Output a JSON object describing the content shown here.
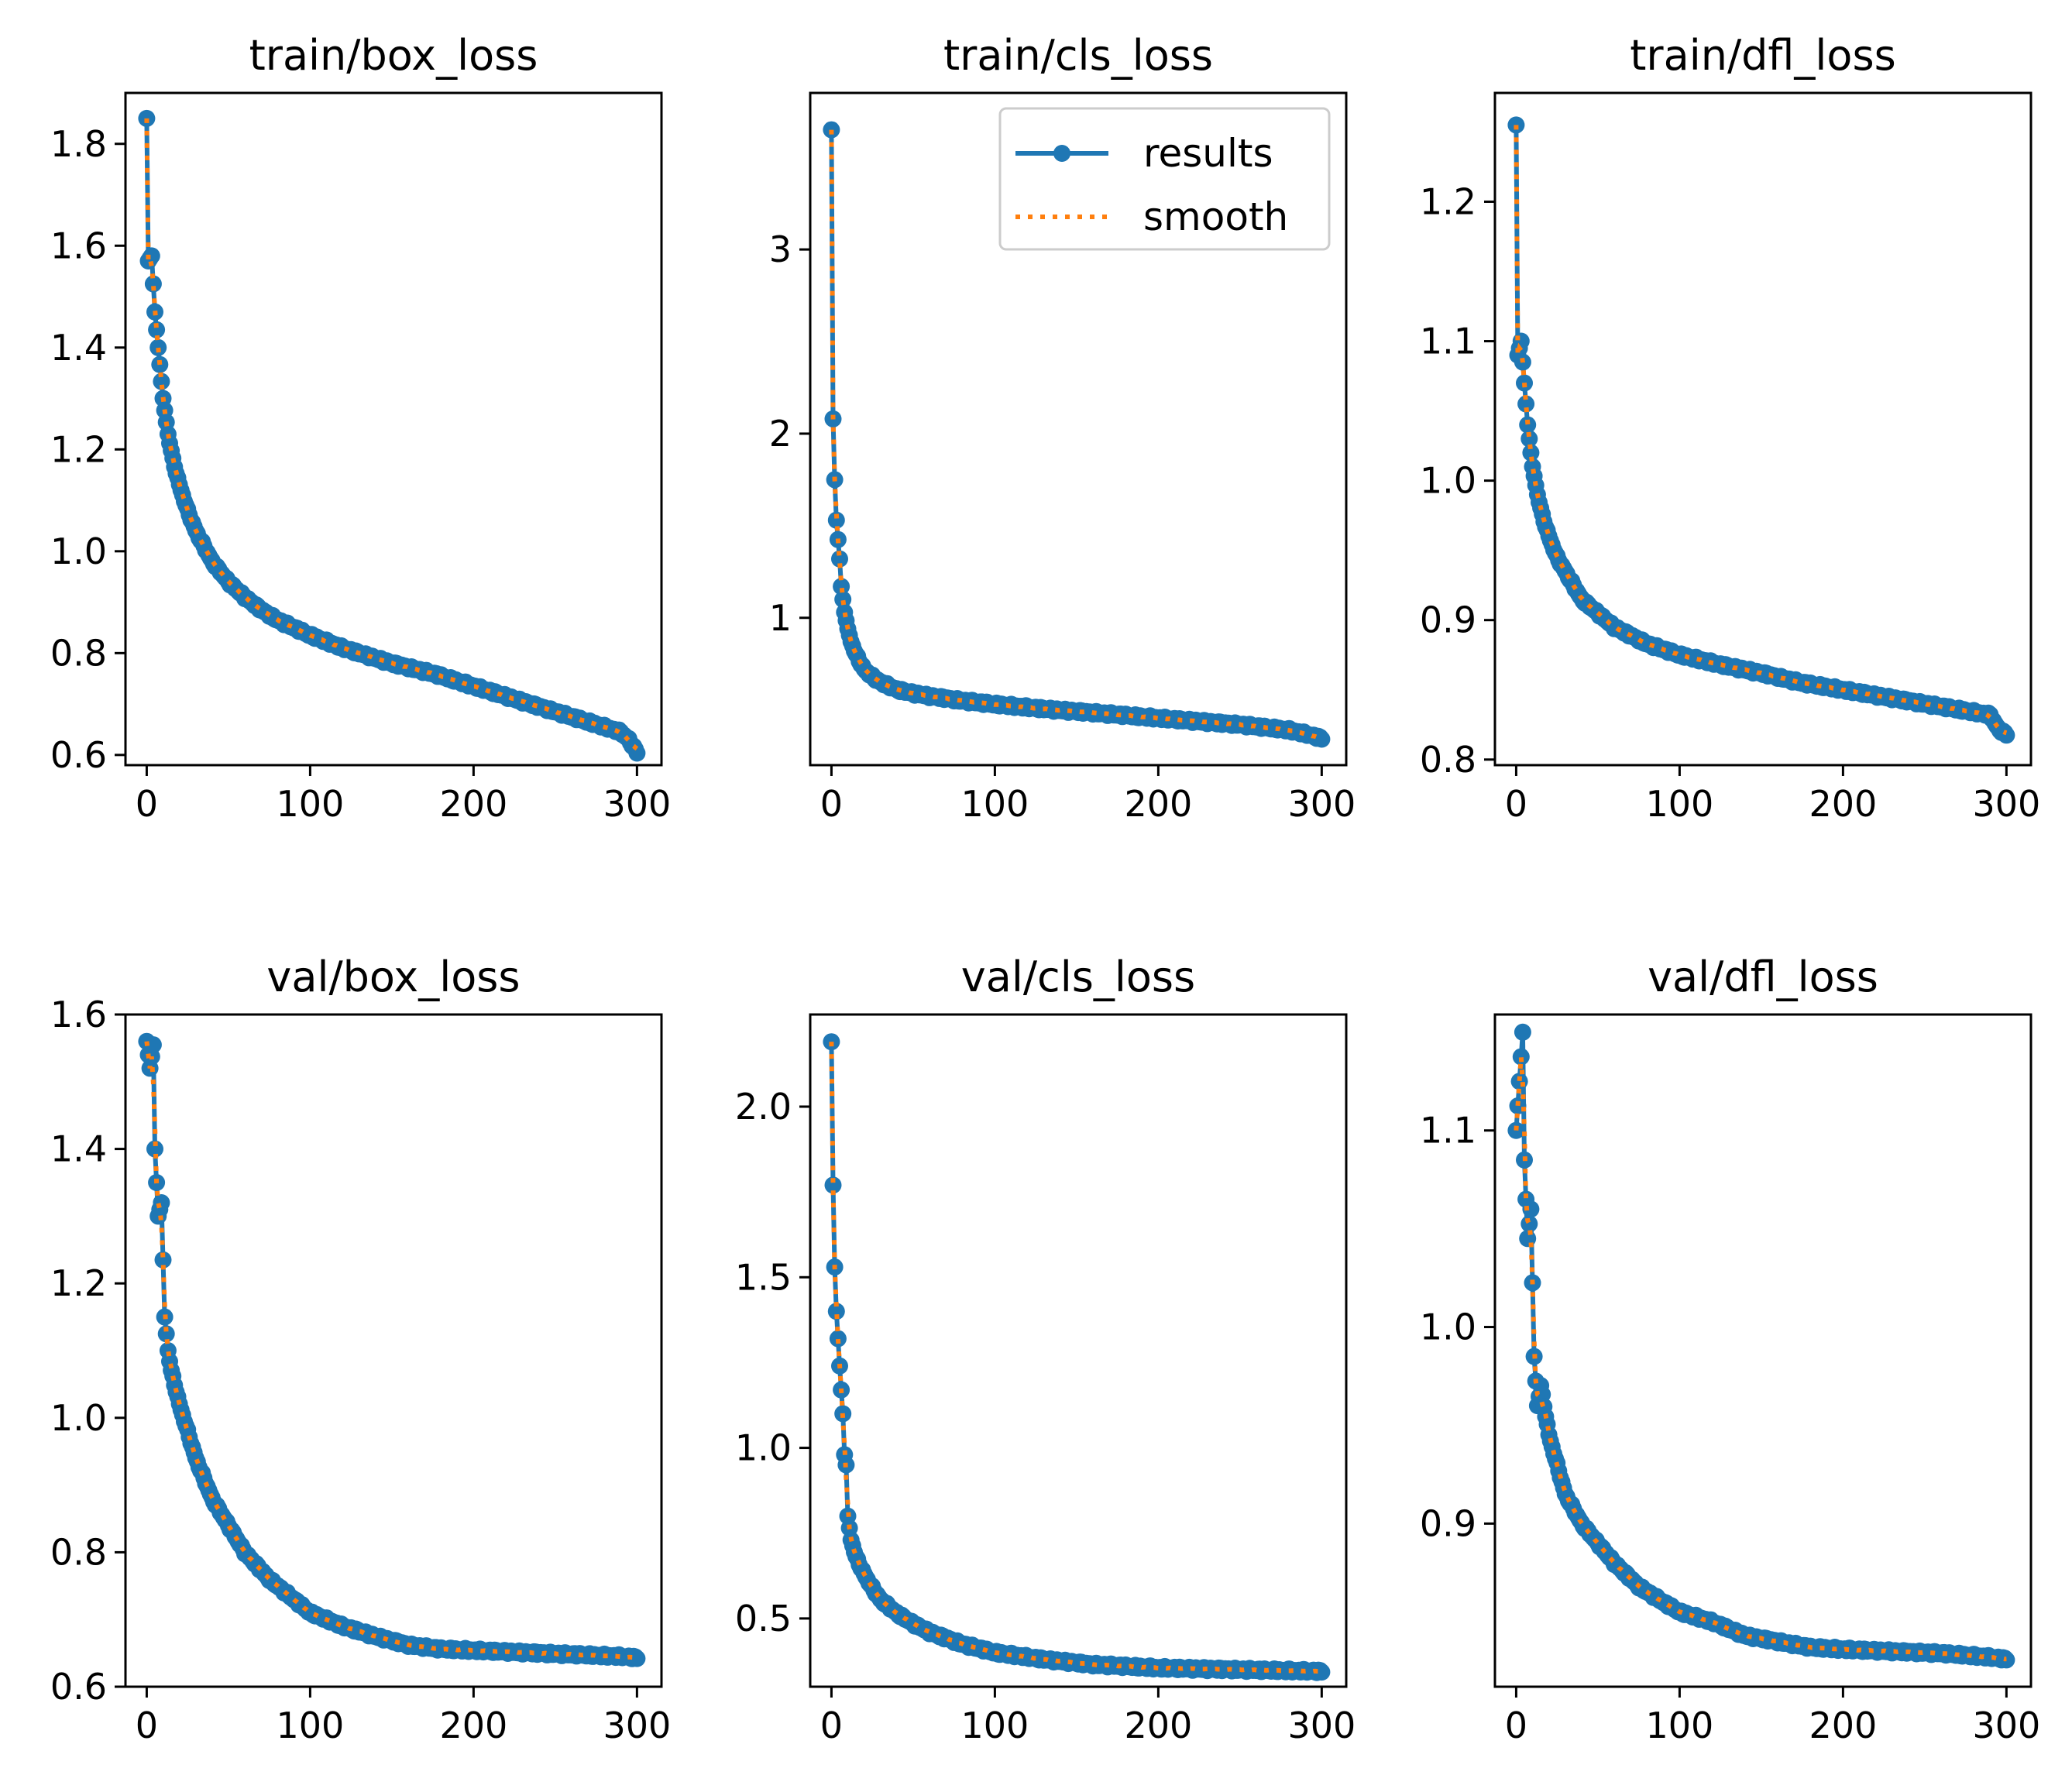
{
  "figure_title": "",
  "colors": {
    "results": "#1f77b4",
    "smooth": "#ff7f0e",
    "axes": "#000000",
    "background": "#ffffff",
    "legend_border": "#cccccc"
  },
  "legend": {
    "placement": "top-right of train/cls_loss",
    "entries": [
      {
        "name": "results",
        "style": "solid line with circle markers",
        "color": "#1f77b4"
      },
      {
        "name": "smooth",
        "style": "dotted line",
        "color": "#ff7f0e"
      }
    ]
  },
  "chart_data": [
    {
      "type": "line",
      "title": "train/box_loss",
      "xlabel": "",
      "ylabel": "",
      "xlim": [
        -13,
        315
      ],
      "ylim": [
        0.58,
        1.9
      ],
      "xticks": [
        0,
        100,
        200,
        300
      ],
      "yticks": [
        0.6,
        0.8,
        1.0,
        1.2,
        1.4,
        1.6,
        1.8
      ],
      "ytick_labels": [
        "0.6",
        "0.8",
        "1.0",
        "1.2",
        "1.4",
        "1.6",
        "1.8"
      ],
      "shape": "hyperbolic",
      "anchors": [
        [
          0,
          1.85
        ],
        [
          1,
          1.57
        ],
        [
          3,
          1.58
        ],
        [
          5,
          1.47
        ],
        [
          7,
          1.4
        ],
        [
          10,
          1.3
        ],
        [
          13,
          1.23
        ],
        [
          16,
          1.18
        ],
        [
          20,
          1.13
        ],
        [
          25,
          1.08
        ],
        [
          30,
          1.04
        ],
        [
          40,
          0.98
        ],
        [
          50,
          0.94
        ],
        [
          60,
          0.91
        ],
        [
          70,
          0.885
        ],
        [
          80,
          0.865
        ],
        [
          100,
          0.835
        ],
        [
          120,
          0.81
        ],
        [
          150,
          0.78
        ],
        [
          175,
          0.76
        ],
        [
          200,
          0.735
        ],
        [
          225,
          0.71
        ],
        [
          250,
          0.685
        ],
        [
          275,
          0.66
        ],
        [
          290,
          0.645
        ],
        [
          295,
          0.63
        ],
        [
          300,
          0.605
        ]
      ],
      "series": [
        {
          "name": "results",
          "role": "results"
        },
        {
          "name": "smooth",
          "role": "smooth"
        }
      ],
      "legend": false
    },
    {
      "type": "line",
      "title": "train/cls_loss",
      "xlabel": "",
      "ylabel": "",
      "xlim": [
        -13,
        315
      ],
      "ylim": [
        0.2,
        3.85
      ],
      "xticks": [
        0,
        100,
        200,
        300
      ],
      "yticks": [
        1,
        2,
        3
      ],
      "ytick_labels": [
        "1",
        "2",
        "3"
      ],
      "shape": "elbow",
      "anchors": [
        [
          0,
          3.65
        ],
        [
          1,
          2.08
        ],
        [
          2,
          1.75
        ],
        [
          3,
          1.53
        ],
        [
          5,
          1.32
        ],
        [
          6,
          1.17
        ],
        [
          8,
          1.03
        ],
        [
          10,
          0.94
        ],
        [
          12,
          0.87
        ],
        [
          15,
          0.8
        ],
        [
          20,
          0.72
        ],
        [
          25,
          0.68
        ],
        [
          30,
          0.65
        ],
        [
          40,
          0.61
        ],
        [
          50,
          0.59
        ],
        [
          60,
          0.575
        ],
        [
          80,
          0.55
        ],
        [
          100,
          0.53
        ],
        [
          130,
          0.505
        ],
        [
          160,
          0.485
        ],
        [
          200,
          0.455
        ],
        [
          250,
          0.42
        ],
        [
          280,
          0.39
        ],
        [
          290,
          0.37
        ],
        [
          300,
          0.345
        ]
      ],
      "series": [
        {
          "name": "results",
          "role": "results"
        },
        {
          "name": "smooth",
          "role": "smooth"
        }
      ],
      "legend": true
    },
    {
      "type": "line",
      "title": "train/dfl_loss",
      "xlabel": "",
      "ylabel": "",
      "xlim": [
        -13,
        315
      ],
      "ylim": [
        0.796,
        1.278
      ],
      "xticks": [
        0,
        100,
        200,
        300
      ],
      "yticks": [
        0.8,
        0.9,
        1.0,
        1.1,
        1.2
      ],
      "ytick_labels": [
        "0.8",
        "0.9",
        "1.0",
        "1.1",
        "1.2"
      ],
      "shape": "hyperbolic",
      "anchors": [
        [
          0,
          1.255
        ],
        [
          1,
          1.09
        ],
        [
          3,
          1.1
        ],
        [
          5,
          1.07
        ],
        [
          7,
          1.04
        ],
        [
          10,
          1.01
        ],
        [
          13,
          0.99
        ],
        [
          16,
          0.975
        ],
        [
          20,
          0.96
        ],
        [
          25,
          0.945
        ],
        [
          30,
          0.935
        ],
        [
          40,
          0.915
        ],
        [
          50,
          0.905
        ],
        [
          60,
          0.895
        ],
        [
          80,
          0.883
        ],
        [
          100,
          0.875
        ],
        [
          125,
          0.868
        ],
        [
          150,
          0.862
        ],
        [
          175,
          0.855
        ],
        [
          200,
          0.85
        ],
        [
          225,
          0.845
        ],
        [
          250,
          0.84
        ],
        [
          275,
          0.835
        ],
        [
          290,
          0.832
        ],
        [
          295,
          0.822
        ],
        [
          300,
          0.818
        ]
      ],
      "series": [
        {
          "name": "results",
          "role": "results"
        },
        {
          "name": "smooth",
          "role": "smooth"
        }
      ],
      "legend": false
    },
    {
      "type": "line",
      "title": "val/box_loss",
      "xlabel": "",
      "ylabel": "",
      "xlim": [
        -13,
        315
      ],
      "ylim": [
        0.6,
        1.6
      ],
      "xticks": [
        0,
        100,
        200,
        300
      ],
      "yticks": [
        0.6,
        0.8,
        1.0,
        1.2,
        1.4,
        1.6
      ],
      "ytick_labels": [
        "0.6",
        "0.8",
        "1.0",
        "1.2",
        "1.4",
        "1.6"
      ],
      "shape": "exponential",
      "anchors": [
        [
          0,
          1.56
        ],
        [
          2,
          1.52
        ],
        [
          4,
          1.555
        ],
        [
          5,
          1.4
        ],
        [
          7,
          1.3
        ],
        [
          9,
          1.32
        ],
        [
          11,
          1.15
        ],
        [
          13,
          1.1
        ],
        [
          15,
          1.07
        ],
        [
          20,
          1.02
        ],
        [
          25,
          0.98
        ],
        [
          30,
          0.94
        ],
        [
          40,
          0.88
        ],
        [
          50,
          0.84
        ],
        [
          60,
          0.8
        ],
        [
          75,
          0.76
        ],
        [
          90,
          0.73
        ],
        [
          100,
          0.71
        ],
        [
          120,
          0.69
        ],
        [
          140,
          0.675
        ],
        [
          160,
          0.662
        ],
        [
          180,
          0.656
        ],
        [
          200,
          0.654
        ],
        [
          230,
          0.651
        ],
        [
          260,
          0.648
        ],
        [
          290,
          0.645
        ],
        [
          300,
          0.643
        ]
      ],
      "series": [
        {
          "name": "results",
          "role": "results"
        },
        {
          "name": "smooth",
          "role": "smooth"
        }
      ],
      "legend": false
    },
    {
      "type": "line",
      "title": "val/cls_loss",
      "xlabel": "",
      "ylabel": "",
      "xlim": [
        -13,
        315
      ],
      "ylim": [
        0.3,
        2.27
      ],
      "xticks": [
        0,
        100,
        200,
        300
      ],
      "yticks": [
        0.5,
        1.0,
        1.5,
        2.0
      ],
      "ytick_labels": [
        "0.5",
        "1.0",
        "1.5",
        "2.0"
      ],
      "shape": "elbow",
      "anchors": [
        [
          0,
          2.19
        ],
        [
          1,
          1.77
        ],
        [
          2,
          1.53
        ],
        [
          3,
          1.4
        ],
        [
          5,
          1.24
        ],
        [
          7,
          1.1
        ],
        [
          8,
          0.98
        ],
        [
          9,
          0.95
        ],
        [
          10,
          0.8
        ],
        [
          12,
          0.73
        ],
        [
          15,
          0.68
        ],
        [
          20,
          0.63
        ],
        [
          25,
          0.59
        ],
        [
          30,
          0.555
        ],
        [
          40,
          0.515
        ],
        [
          50,
          0.485
        ],
        [
          60,
          0.46
        ],
        [
          80,
          0.425
        ],
        [
          100,
          0.4
        ],
        [
          130,
          0.38
        ],
        [
          160,
          0.365
        ],
        [
          200,
          0.355
        ],
        [
          250,
          0.35
        ],
        [
          300,
          0.345
        ]
      ],
      "series": [
        {
          "name": "results",
          "role": "results"
        },
        {
          "name": "smooth",
          "role": "smooth"
        }
      ],
      "legend": false
    },
    {
      "type": "line",
      "title": "val/dfl_loss",
      "xlabel": "",
      "ylabel": "",
      "xlim": [
        -13,
        315
      ],
      "ylim": [
        0.817,
        1.159
      ],
      "xticks": [
        0,
        100,
        200,
        300
      ],
      "yticks": [
        0.9,
        1.0,
        1.1
      ],
      "ytick_labels": [
        "0.9",
        "1.0",
        "1.1"
      ],
      "shape": "exponential",
      "anchors": [
        [
          0,
          1.1
        ],
        [
          2,
          1.125
        ],
        [
          4,
          1.15
        ],
        [
          5,
          1.085
        ],
        [
          7,
          1.045
        ],
        [
          9,
          1.06
        ],
        [
          11,
          0.985
        ],
        [
          13,
          0.96
        ],
        [
          15,
          0.97
        ],
        [
          20,
          0.945
        ],
        [
          25,
          0.93
        ],
        [
          30,
          0.915
        ],
        [
          40,
          0.9
        ],
        [
          50,
          0.89
        ],
        [
          60,
          0.88
        ],
        [
          75,
          0.868
        ],
        [
          90,
          0.86
        ],
        [
          100,
          0.855
        ],
        [
          120,
          0.85
        ],
        [
          140,
          0.843
        ],
        [
          160,
          0.84
        ],
        [
          180,
          0.837
        ],
        [
          200,
          0.836
        ],
        [
          230,
          0.835
        ],
        [
          260,
          0.834
        ],
        [
          290,
          0.832
        ],
        [
          300,
          0.831
        ]
      ],
      "series": [
        {
          "name": "results",
          "role": "results"
        },
        {
          "name": "smooth",
          "role": "smooth"
        }
      ],
      "legend": false
    }
  ]
}
